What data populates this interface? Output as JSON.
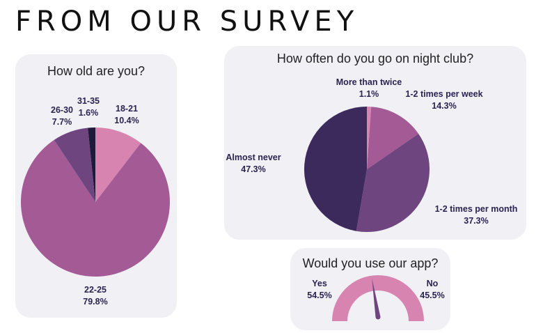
{
  "page": {
    "title": "FROM OUR SURVEY"
  },
  "colors": {
    "card_bg": "#f0f0f5",
    "pink": "#d884b0",
    "mauve": "#a35a95",
    "plum": "#6f4580",
    "deep_plum": "#3d2a5c",
    "label": "#2b2350"
  },
  "chart_data": [
    {
      "type": "pie",
      "title": "How old are you?",
      "categories": [
        "18-21",
        "22-25",
        "26-30",
        "31-35"
      ],
      "values": [
        10.4,
        79.8,
        7.7,
        1.6
      ],
      "labels": [
        "10.4%",
        "79.8%",
        "7.7%",
        "1.6%"
      ],
      "colors": [
        "#d884b0",
        "#a35a95",
        "#6f4580",
        "#1f1a3a"
      ]
    },
    {
      "type": "pie",
      "title": "How often do you go on night club?",
      "categories": [
        "More than twice",
        "1-2 times per week",
        "1-2 times per month",
        "Almost never"
      ],
      "values": [
        1.1,
        14.3,
        37.3,
        47.3
      ],
      "labels": [
        "1.1%",
        "14.3%",
        "37.3%",
        "47.3%"
      ],
      "colors": [
        "#d884b0",
        "#a35a95",
        "#6f4580",
        "#3d2a5c"
      ]
    },
    {
      "type": "gauge",
      "title": "Would you use our app?",
      "categories": [
        "Yes",
        "No"
      ],
      "values": [
        54.5,
        45.5
      ],
      "labels": [
        "54.5%",
        "45.5%"
      ],
      "colors": [
        "#d884b0",
        "#6f4580"
      ]
    }
  ]
}
